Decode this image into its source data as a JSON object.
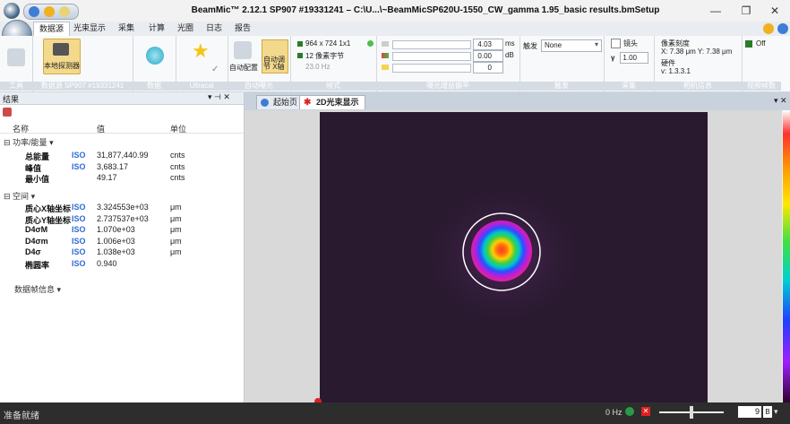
{
  "window": {
    "title": "BeamMic™ 2.12.1 SP907 #19331241 – C:\\U...\\~BeamMicSP620U-1550_CW_gamma 1.95_basic results.bmSetup",
    "min_glyph": "—",
    "max_glyph": "❐",
    "close_glyph": "✕"
  },
  "tabs": [
    "数据源",
    "光束显示",
    "采集",
    "计算",
    "光圈",
    "日志",
    "报告"
  ],
  "ribbon": {
    "tools_label": "工具",
    "source_button": "本地探测器",
    "source_group_label": "数据源 SP907 #19331241",
    "data_group_label": "数据",
    "ultracal_label": "Ultracal",
    "auto_config": "自动配置",
    "auto_adjust": "自动调\n节 X轴",
    "auto_group_label": "自动曝光",
    "resolution": "964 x 724 1x1",
    "bits": "12 像素字节",
    "frame_rate": "23.0 Hz",
    "frame_group_label": "帧式",
    "exposure_value": "4.03",
    "exposure_unit": "ms",
    "gain_value": "0.00",
    "gain_unit": "dB",
    "offset_value": "0",
    "exposure_group_label": "曝光增益偏平",
    "trigger_label": "触发",
    "trigger_value": "None",
    "trigger_group_label": "触发",
    "lens_label": "镜头",
    "gamma_label": "γ",
    "gamma_value": "1.00",
    "capture_group_label": "采集",
    "pixel_scale_label": "像素刻度",
    "pixel_scale_value": "X: 7.38 μm  Y: 7.38 μm",
    "hardware_label": "硬件",
    "hardware_value": "v: 1.3.3.1",
    "camera_group_label": "相机信息",
    "off_button": "Off",
    "video_group_label": "视频帧数"
  },
  "results": {
    "panel_title": "结果",
    "pin_glyph": "▾ ⊣ ✕",
    "columns": [
      "名称",
      "值",
      "单位"
    ],
    "sections": {
      "power": "功率/能量",
      "space": "空间",
      "frame": "数据帧信息"
    },
    "power_rows": [
      {
        "name": "总能量",
        "iso": "ISO",
        "value": "31,877,440.99",
        "unit": "cnts"
      },
      {
        "name": "峰值",
        "iso": "ISO",
        "value": "3,683.17",
        "unit": "cnts"
      },
      {
        "name": "最小值",
        "iso": "",
        "value": "49.17",
        "unit": "cnts"
      }
    ],
    "space_rows": [
      {
        "name": "质心X轴坐标",
        "iso": "ISO",
        "value": "3.324553e+03",
        "unit": "μm"
      },
      {
        "name": "质心Y轴坐标",
        "iso": "ISO",
        "value": "2.737537e+03",
        "unit": "μm"
      },
      {
        "name": "D4σM",
        "iso": "ISO",
        "value": "1.070e+03",
        "unit": "μm"
      },
      {
        "name": "D4σm",
        "iso": "ISO",
        "value": "1.006e+03",
        "unit": "μm"
      },
      {
        "name": "D4σ",
        "iso": "ISO",
        "value": "1.038e+03",
        "unit": "μm"
      },
      {
        "name": "椭圆率",
        "iso": "ISO",
        "value": "0.940",
        "unit": ""
      }
    ]
  },
  "view": {
    "tabs": [
      "起始页",
      "2D光束显示"
    ]
  },
  "status": {
    "text": "准备就绪",
    "rate": "0 Hz",
    "zoom_value": "9",
    "colors": {
      "accent": "#f5c518",
      "red": "#e02020",
      "iso": "#2e6bd6"
    }
  }
}
